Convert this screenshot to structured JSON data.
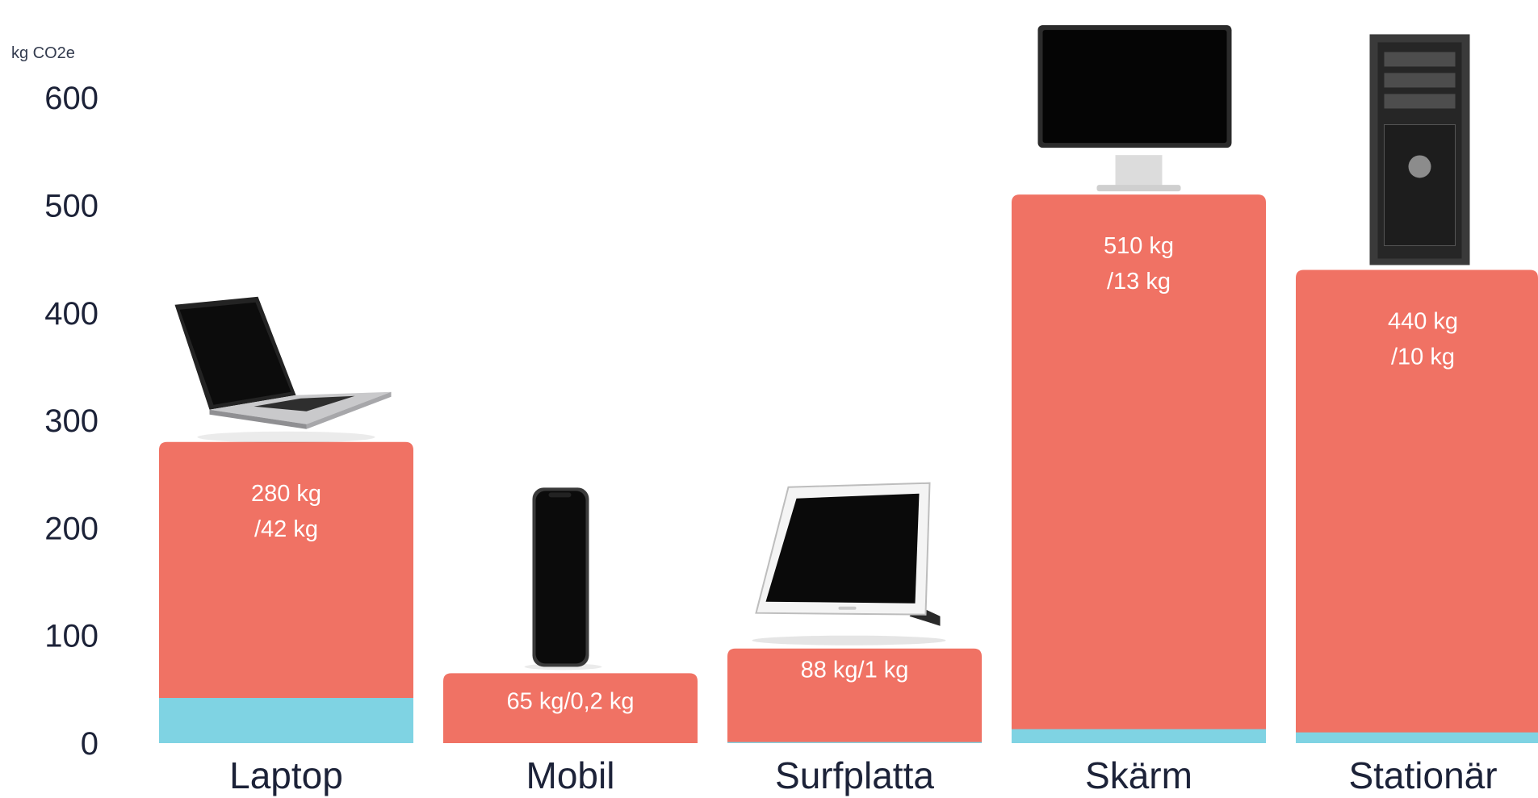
{
  "chart_data": {
    "type": "bar",
    "stacked": true,
    "ylabel": "kg CO2e",
    "ylim": [
      0,
      640
    ],
    "yticks": [
      0,
      100,
      200,
      300,
      400,
      500,
      600
    ],
    "grid": false,
    "legend": "none",
    "categories": [
      "Laptop",
      "Mobil",
      "Surfplatta",
      "Skärm",
      "Stationär"
    ],
    "series": [
      {
        "values": [
          42,
          0.2,
          1,
          13,
          10
        ],
        "color": "#7fd3e3"
      },
      {
        "values": [
          280,
          65,
          88,
          510,
          440
        ],
        "color": "#f07264"
      }
    ],
    "data_labels": [
      [
        "280 kg",
        "/42 kg"
      ],
      [
        "65 kg/0,2 kg"
      ],
      [
        "88 kg/1 kg"
      ],
      [
        "510 kg",
        "/13 kg"
      ],
      [
        "440 kg",
        "/10 kg"
      ]
    ],
    "icons": [
      "laptop-icon",
      "smartphone-icon",
      "tablet-icon",
      "monitor-icon",
      "desktop-tower-icon"
    ]
  }
}
